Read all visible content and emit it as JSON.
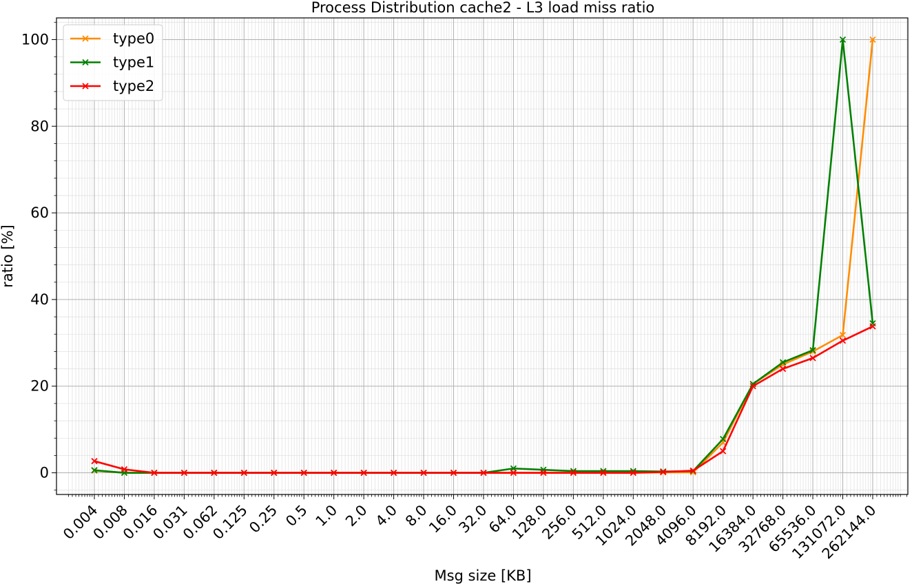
{
  "chart_data": {
    "type": "line",
    "title": "Process Distribution cache2 - L3 load miss ratio",
    "xlabel": "Msg size [KB]",
    "ylabel": "ratio [%]",
    "x_scale": "log2",
    "categories": [
      "0.004",
      "0.008",
      "0.016",
      "0.031",
      "0.062",
      "0.125",
      "0.25",
      "0.5",
      "1.0",
      "2.0",
      "4.0",
      "8.0",
      "16.0",
      "32.0",
      "64.0",
      "128.0",
      "256.0",
      "512.0",
      "1024.0",
      "2048.0",
      "4096.0",
      "8192.0",
      "16384.0",
      "32768.0",
      "65536.0",
      "131072.0",
      "262144.0"
    ],
    "ylim": [
      -5,
      105
    ],
    "yticks": [
      0,
      20,
      40,
      60,
      80,
      100
    ],
    "grid": true,
    "legend_position": "top-left",
    "series": [
      {
        "name": "type0",
        "color": "#ff8c00",
        "marker": "x",
        "values": [
          0.5,
          0.0,
          0.0,
          0.0,
          0.0,
          0.0,
          0.0,
          0.0,
          0.0,
          0.0,
          0.0,
          0.0,
          0.0,
          0.0,
          0.0,
          0.0,
          0.0,
          0.0,
          0.0,
          0.1,
          0.1,
          7.0,
          20.5,
          25.0,
          28.0,
          31.8,
          100.0
        ]
      },
      {
        "name": "type1",
        "color": "#008000",
        "marker": "x",
        "values": [
          0.6,
          0.0,
          0.0,
          0.0,
          0.0,
          0.0,
          0.0,
          0.0,
          0.0,
          0.0,
          0.0,
          0.0,
          0.0,
          0.0,
          1.0,
          0.7,
          0.4,
          0.4,
          0.4,
          0.3,
          0.4,
          7.8,
          20.5,
          25.5,
          28.3,
          100.0,
          34.5
        ]
      },
      {
        "name": "type2",
        "color": "#ff0000",
        "marker": "x",
        "values": [
          2.7,
          0.8,
          0.0,
          0.0,
          0.0,
          0.0,
          0.0,
          0.0,
          0.0,
          0.0,
          0.0,
          0.0,
          0.0,
          0.0,
          0.0,
          0.0,
          0.0,
          0.0,
          0.0,
          0.2,
          0.5,
          5.0,
          20.0,
          24.0,
          26.5,
          30.5,
          33.8
        ]
      }
    ]
  }
}
